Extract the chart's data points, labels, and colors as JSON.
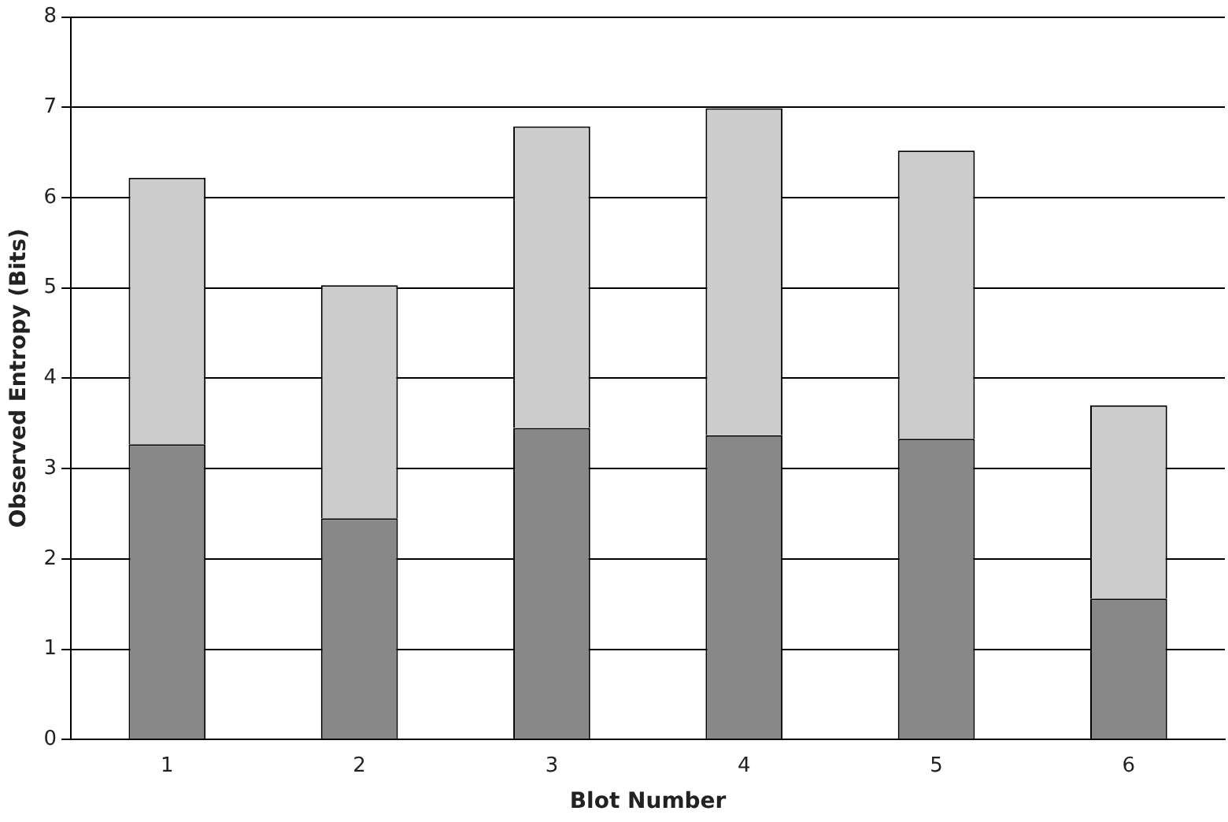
{
  "chart_data": {
    "type": "bar",
    "stacked": true,
    "xlabel": "Blot Number",
    "ylabel": "Observed Entropy (Bits)",
    "categories": [
      "1",
      "2",
      "3",
      "4",
      "5",
      "6"
    ],
    "series": [
      {
        "color": "#888888",
        "values": [
          3.27,
          2.45,
          3.45,
          3.37,
          3.33,
          1.56
        ]
      },
      {
        "color": "#cccccc",
        "values": [
          2.95,
          2.58,
          3.34,
          3.62,
          3.19,
          2.14
        ]
      }
    ],
    "ylim": [
      0,
      8
    ],
    "yticks": [
      0,
      1,
      2,
      3,
      4,
      5,
      6,
      7,
      8
    ],
    "grid": "y",
    "legend": false
  }
}
